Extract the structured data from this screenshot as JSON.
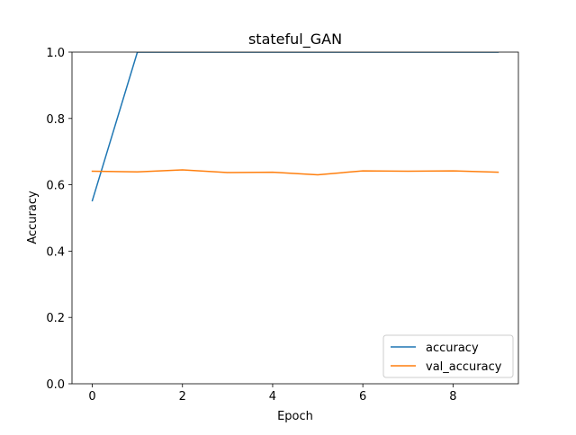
{
  "chart_data": {
    "type": "line",
    "title": "stateful_GAN",
    "xlabel": "Epoch",
    "ylabel": "Accuracy",
    "xlim": [
      -0.45,
      9.45
    ],
    "ylim": [
      0.0,
      1.0
    ],
    "x_ticks": [
      0,
      2,
      4,
      6,
      8
    ],
    "x_tick_labels": [
      "0",
      "2",
      "4",
      "6",
      "8"
    ],
    "y_ticks": [
      0.0,
      0.2,
      0.4,
      0.6,
      0.8,
      1.0
    ],
    "y_tick_labels": [
      "0.0",
      "0.2",
      "0.4",
      "0.6",
      "0.8",
      "1.0"
    ],
    "grid": false,
    "legend_position": "lower-right",
    "x": [
      0,
      1,
      2,
      3,
      4,
      5,
      6,
      7,
      8,
      9
    ],
    "series": [
      {
        "name": "accuracy",
        "color": "#1f77b4",
        "values": [
          0.552,
          1.0,
          1.0,
          1.0,
          1.0,
          1.0,
          1.0,
          1.0,
          1.0,
          1.0
        ]
      },
      {
        "name": "val_accuracy",
        "color": "#ff7f0e",
        "values": [
          0.641,
          0.639,
          0.645,
          0.637,
          0.638,
          0.63,
          0.642,
          0.641,
          0.642,
          0.638
        ]
      }
    ]
  }
}
